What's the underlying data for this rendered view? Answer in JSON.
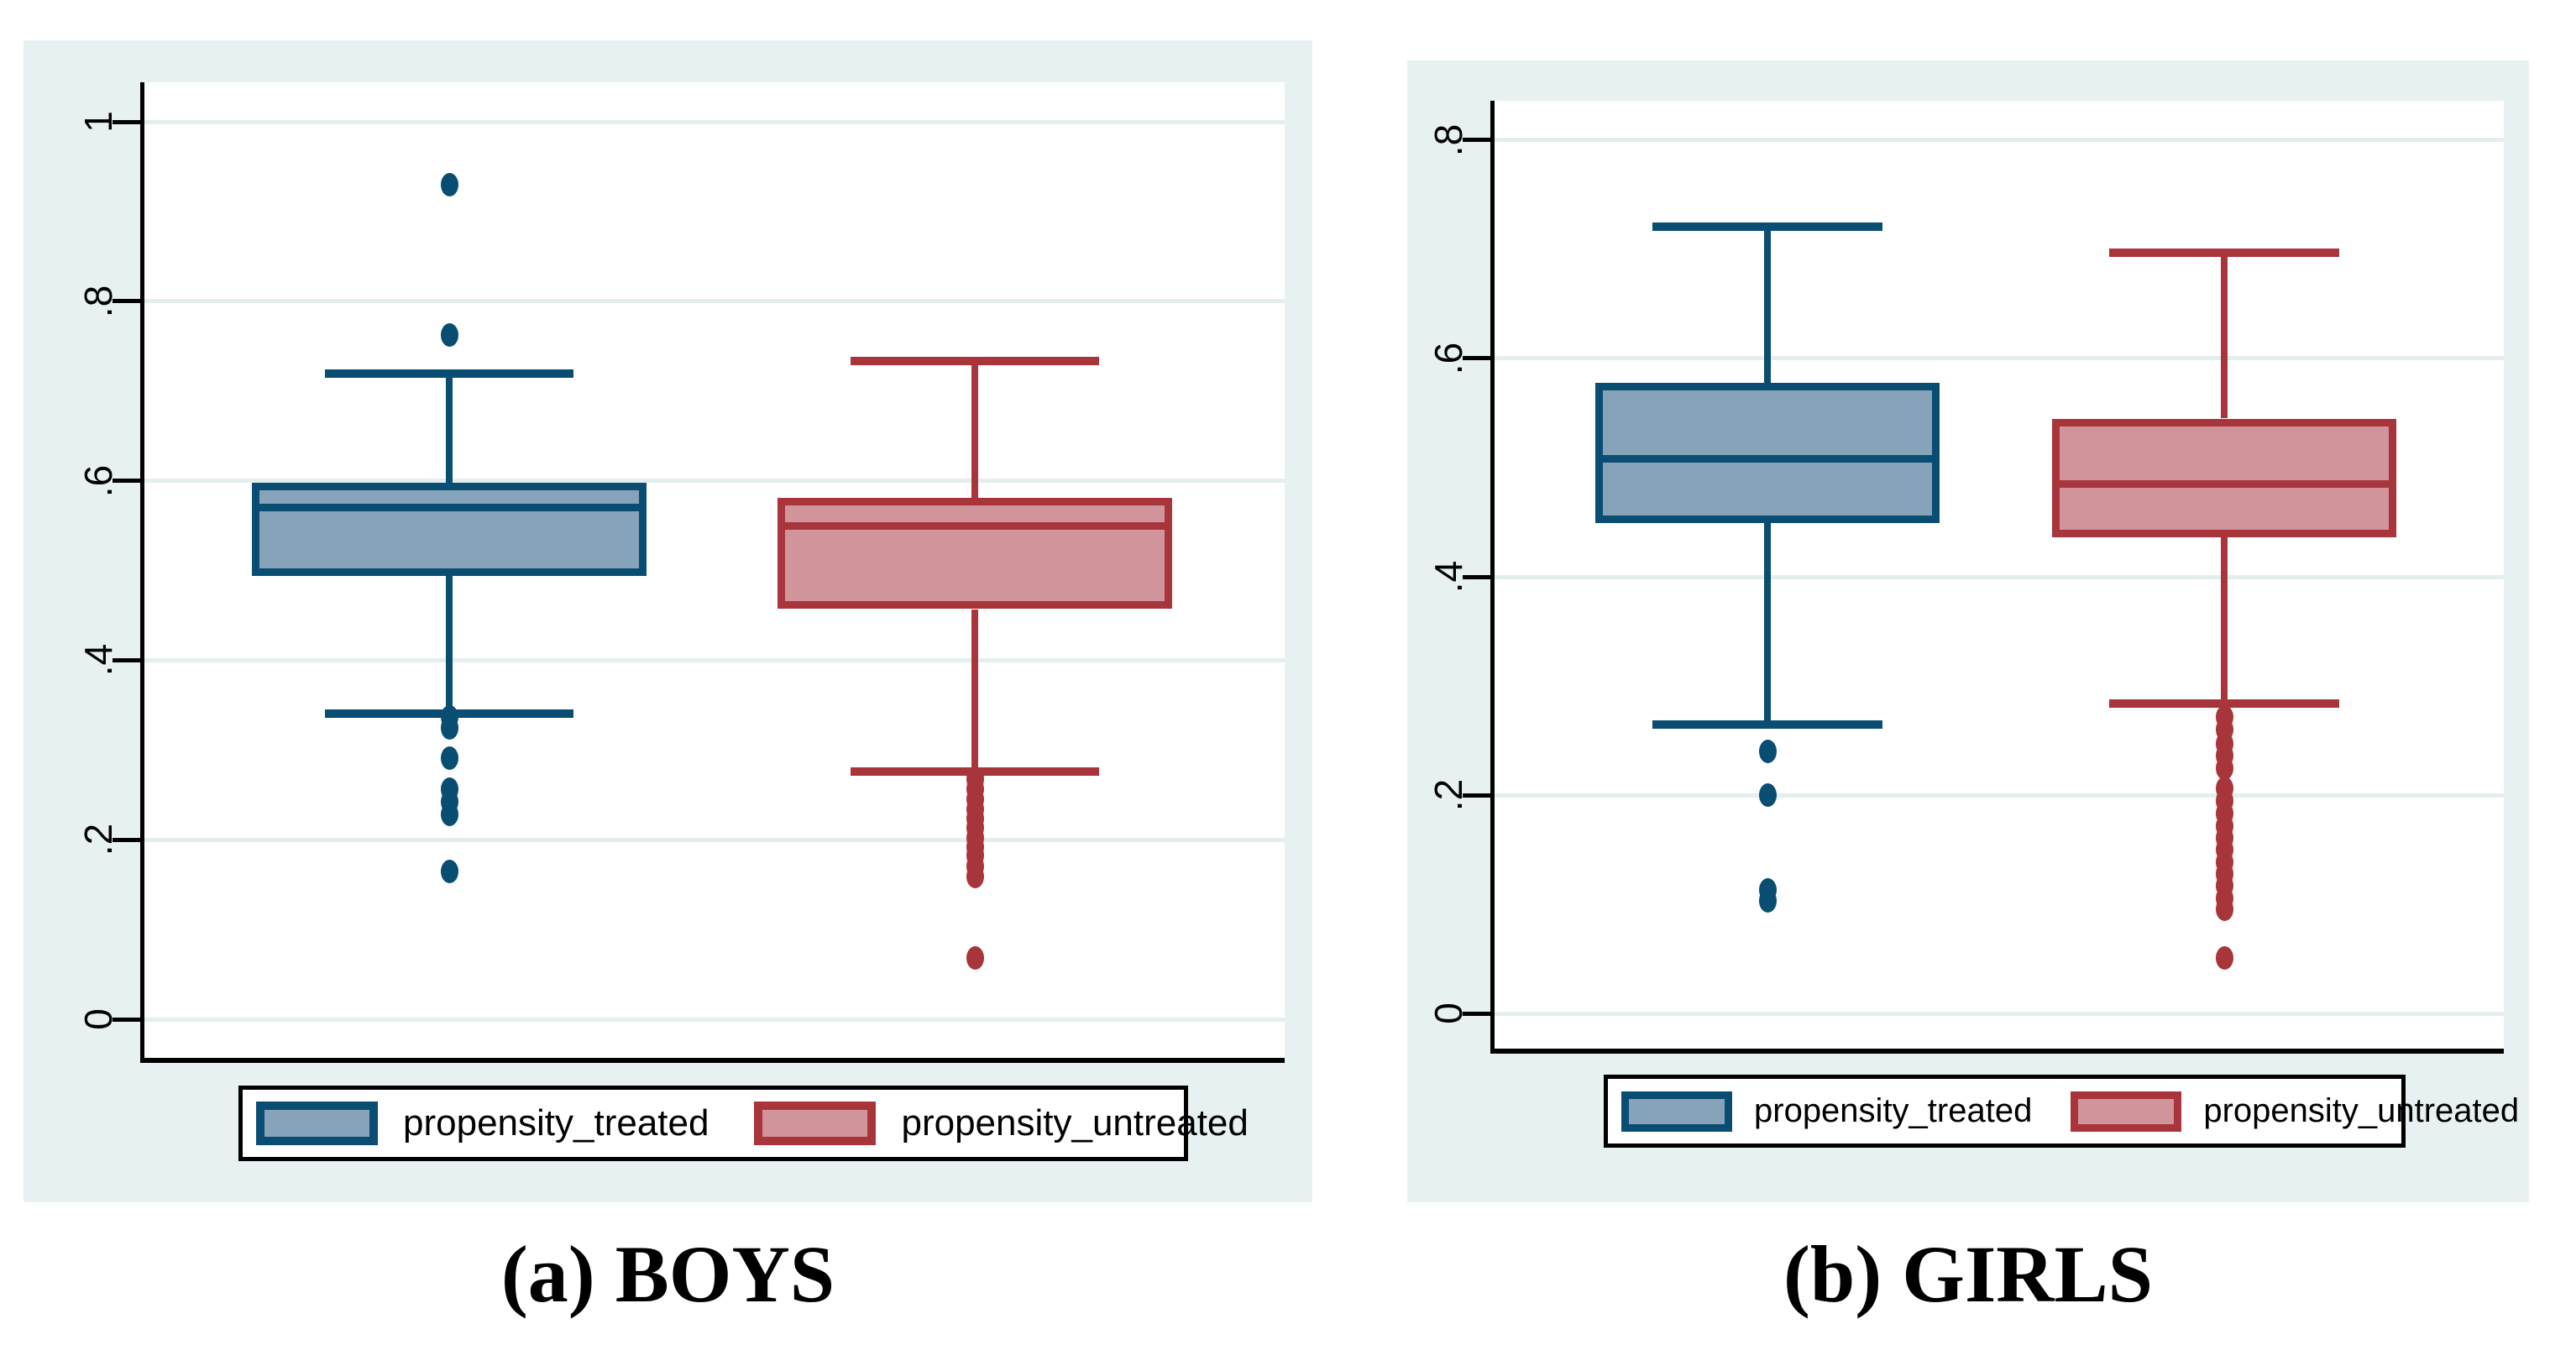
{
  "colors": {
    "panel_background": "#e8f1f1",
    "gridline": "#e3efef",
    "axis": "#000000",
    "treated_border": "#0a4d73",
    "treated_fill": "#86a3b9",
    "untreated_border": "#a8353c",
    "untreated_fill": "#d1949b"
  },
  "chart_data": [
    {
      "type": "boxplot",
      "title": "(a) BOYS",
      "ylim": [
        -0.043,
        1.044
      ],
      "yticks": [
        0,
        0.2,
        0.4,
        0.6,
        0.8,
        1
      ],
      "ytick_labels": [
        "0",
        ".2",
        ".4",
        ".6",
        ".8",
        "1"
      ],
      "grid": true,
      "legend_position": "bottom",
      "series": [
        {
          "name": "propensity_treated",
          "color_line": "#0a4d73",
          "color_fill": "#86a3b9",
          "whisker_high": 0.719,
          "q3": 0.598,
          "median": 0.57,
          "q1": 0.494,
          "whisker_low": 0.341,
          "outliers_high": [
            0.93,
            0.762
          ],
          "outliers_low": [
            0.337,
            0.325,
            0.291,
            0.256,
            0.242,
            0.228,
            0.165
          ]
        },
        {
          "name": "propensity_untreated",
          "color_line": "#a8353c",
          "color_fill": "#d1949b",
          "whisker_high": 0.733,
          "q3": 0.581,
          "median": 0.55,
          "q1": 0.457,
          "whisker_low": 0.276,
          "outliers_high": [],
          "outliers_low": [
            0.268,
            0.256,
            0.245,
            0.234,
            0.224,
            0.213,
            0.202,
            0.192,
            0.182,
            0.17,
            0.159,
            0.068
          ]
        }
      ]
    },
    {
      "type": "boxplot",
      "title": "(b) GIRLS",
      "ylim": [
        -0.032,
        0.836
      ],
      "yticks": [
        0,
        0.2,
        0.4,
        0.6,
        0.8
      ],
      "ytick_labels": [
        "0",
        ".2",
        ".4",
        ".6",
        ".8"
      ],
      "grid": true,
      "legend_position": "bottom",
      "series": [
        {
          "name": "propensity_treated",
          "color_line": "#0a4d73",
          "color_fill": "#86a3b9",
          "whisker_high": 0.721,
          "q3": 0.578,
          "median": 0.508,
          "q1": 0.449,
          "whisker_low": 0.265,
          "outliers_high": [],
          "outliers_low": [
            0.24,
            0.2,
            0.113,
            0.103
          ]
        },
        {
          "name": "propensity_untreated",
          "color_line": "#a8353c",
          "color_fill": "#d1949b",
          "whisker_high": 0.697,
          "q3": 0.545,
          "median": 0.485,
          "q1": 0.436,
          "whisker_low": 0.284,
          "outliers_high": [],
          "outliers_low": [
            0.272,
            0.26,
            0.247,
            0.236,
            0.225,
            0.206,
            0.195,
            0.183,
            0.172,
            0.161,
            0.15,
            0.139,
            0.128,
            0.117,
            0.106,
            0.096,
            0.051
          ]
        }
      ]
    }
  ]
}
